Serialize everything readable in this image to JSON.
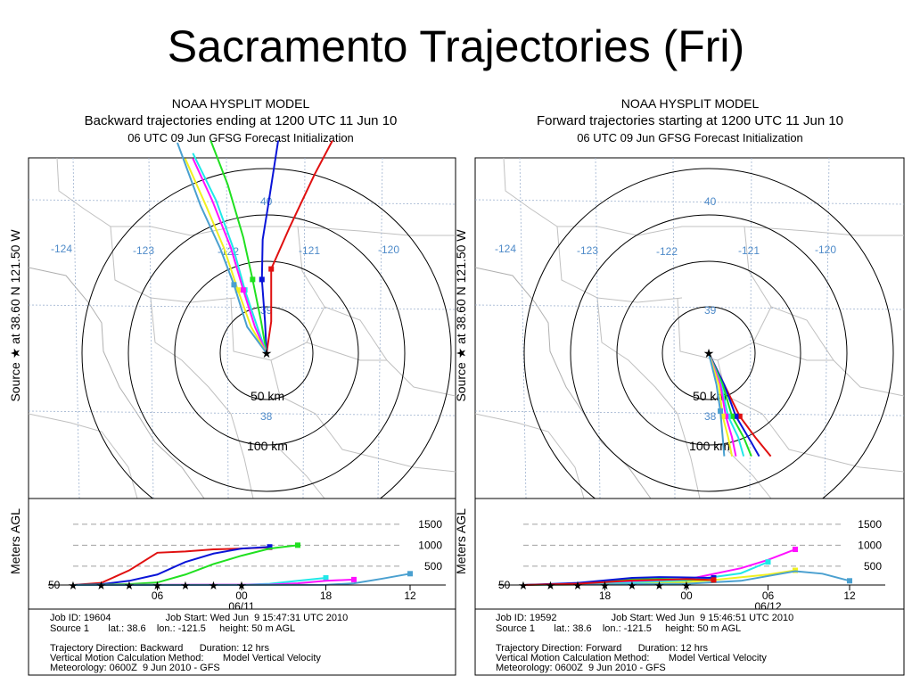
{
  "slide": {
    "title": "Sacramento Trajectories (Fri)"
  },
  "colors": {
    "red": "#e01010",
    "blue": "#0a14d8",
    "green": "#20e020",
    "cyan": "#20e8e8",
    "magenta": "#ff10ff",
    "yellow": "#f0f020",
    "steel": "#4aa0d0"
  },
  "chart_data": [
    {
      "type": "line",
      "header": {
        "line1": "NOAA HYSPLIT MODEL",
        "line2": "Backward trajectories ending at 1200 UTC 11 Jun 10",
        "line3": "06 UTC 09 Jun    GFSG  Forecast Initialization"
      },
      "side_label": "Source  ★  at   38.60 N  121.50 W",
      "map": {
        "lon_labels": [
          "-124",
          "-123",
          "-122",
          "-121",
          "-120"
        ],
        "lat_labels": [
          "40",
          "39",
          "38"
        ],
        "ring_labels": [
          "50 km",
          "100 km"
        ],
        "source": {
          "lat": 38.6,
          "lon": -121.5
        },
        "series": [
          {
            "color": "red",
            "points": [
              [
                -121.5,
                38.6
              ],
              [
                -121.44,
                38.9
              ],
              [
                -121.44,
                39.4
              ],
              [
                -121.2,
                39.8
              ],
              [
                -120.88,
                40.3
              ],
              [
                -120.65,
                40.62
              ]
            ]
          },
          {
            "color": "blue",
            "points": [
              [
                -121.5,
                38.6
              ],
              [
                -121.52,
                38.9
              ],
              [
                -121.56,
                39.3
              ],
              [
                -121.55,
                39.68
              ],
              [
                -121.48,
                40.0
              ],
              [
                -121.35,
                40.62
              ]
            ]
          },
          {
            "color": "green",
            "points": [
              [
                -121.5,
                38.6
              ],
              [
                -121.57,
                38.9
              ],
              [
                -121.68,
                39.3
              ],
              [
                -121.8,
                39.7
              ],
              [
                -122.0,
                40.2
              ],
              [
                -122.22,
                40.62
              ]
            ]
          },
          {
            "color": "cyan",
            "points": [
              [
                -121.5,
                38.6
              ],
              [
                -121.62,
                38.85
              ],
              [
                -121.78,
                39.2
              ],
              [
                -121.93,
                39.6
              ],
              [
                -122.15,
                40.05
              ],
              [
                -122.45,
                40.5
              ]
            ]
          },
          {
            "color": "magenta",
            "points": [
              [
                -121.5,
                38.6
              ],
              [
                -121.65,
                38.85
              ],
              [
                -121.8,
                39.2
              ],
              [
                -121.96,
                39.6
              ],
              [
                -122.2,
                40.05
              ],
              [
                -122.45,
                40.45
              ]
            ]
          },
          {
            "color": "yellow",
            "points": [
              [
                -121.5,
                38.6
              ],
              [
                -121.7,
                38.85
              ],
              [
                -121.87,
                39.2
              ],
              [
                -122.05,
                39.6
              ],
              [
                -122.28,
                40.0
              ],
              [
                -122.55,
                40.45
              ]
            ]
          },
          {
            "color": "steel",
            "points": [
              [
                -121.5,
                38.6
              ],
              [
                -121.75,
                38.85
              ],
              [
                -121.92,
                39.25
              ],
              [
                -122.1,
                39.6
              ],
              [
                -122.35,
                40.0
              ],
              [
                -122.65,
                40.6
              ]
            ]
          }
        ]
      },
      "profile": {
        "ylabel": "Meters AGL",
        "yticks": [
          "1500",
          "1000",
          "500"
        ],
        "ylevels": [
          1500,
          1000,
          500
        ],
        "y_left_label": "50",
        "xticks": [
          "06",
          "00",
          "18",
          "12"
        ],
        "xtick_hours": [
          3,
          6,
          9,
          12
        ],
        "date_label": "06/11",
        "date_hour": 6,
        "series": [
          {
            "color": "red",
            "values": [
              [
                0,
                50
              ],
              [
                1,
                100
              ],
              [
                2,
                400
              ],
              [
                3,
                820
              ],
              [
                4,
                850
              ],
              [
                5,
                900
              ],
              [
                6,
                920
              ],
              [
                7,
                950
              ]
            ]
          },
          {
            "color": "blue",
            "values": [
              [
                0,
                50
              ],
              [
                1,
                70
              ],
              [
                2,
                150
              ],
              [
                3,
                300
              ],
              [
                4,
                600
              ],
              [
                5,
                800
              ],
              [
                6,
                920
              ],
              [
                7,
                960
              ]
            ]
          },
          {
            "color": "green",
            "values": [
              [
                0,
                50
              ],
              [
                2,
                70
              ],
              [
                3,
                110
              ],
              [
                4,
                300
              ],
              [
                5,
                550
              ],
              [
                6,
                750
              ],
              [
                7,
                920
              ],
              [
                8,
                1000
              ]
            ]
          },
          {
            "color": "cyan",
            "values": [
              [
                0,
                50
              ],
              [
                6,
                55
              ],
              [
                7,
                80
              ],
              [
                8,
                150
              ],
              [
                9,
                220
              ]
            ]
          },
          {
            "color": "magenta",
            "values": [
              [
                0,
                50
              ],
              [
                7,
                60
              ],
              [
                8,
                90
              ],
              [
                9,
                150
              ],
              [
                10,
                180
              ]
            ]
          },
          {
            "color": "steel",
            "values": [
              [
                0,
                50
              ],
              [
                9,
                55
              ],
              [
                10,
                90
              ],
              [
                11,
                200
              ],
              [
                12,
                320
              ]
            ]
          }
        ]
      },
      "footer": {
        "line1": "Job ID: 19604                    Job Start: Wed Jun  9 15:47:31 UTC 2010",
        "line2": "Source 1       lat.: 38.6    lon.: -121.5     height: 50 m AGL",
        "line3": "Trajectory Direction: Backward      Duration: 12 hrs",
        "line4": "Vertical Motion Calculation Method:       Model Vertical Velocity",
        "line5": "Meteorology: 0600Z  9 Jun 2010 - GFS"
      }
    },
    {
      "type": "line",
      "header": {
        "line1": "NOAA HYSPLIT MODEL",
        "line2": "Forward trajectories starting at 1200 UTC 11 Jun 10",
        "line3": "06 UTC 09 Jun    GFSG  Forecast Initialization"
      },
      "side_label": "Source  ★  at   38.60 N  121.50 W",
      "map": {
        "lon_labels": [
          "-124",
          "-123",
          "-122",
          "-121",
          "-120"
        ],
        "lat_labels": [
          "40",
          "39",
          "38"
        ],
        "ring_labels": [
          "50 km",
          "100 km"
        ],
        "source": {
          "lat": 38.6,
          "lon": -121.5
        },
        "series": [
          {
            "color": "red",
            "points": [
              [
                -121.5,
                38.6
              ],
              [
                -121.3,
                38.3
              ],
              [
                -121.1,
                38.0
              ],
              [
                -120.9,
                37.8
              ],
              [
                -120.7,
                37.62
              ]
            ]
          },
          {
            "color": "blue",
            "points": [
              [
                -121.5,
                38.6
              ],
              [
                -121.3,
                38.3
              ],
              [
                -121.15,
                38.0
              ],
              [
                -120.95,
                37.75
              ],
              [
                -120.85,
                37.62
              ]
            ]
          },
          {
            "color": "green",
            "points": [
              [
                -121.5,
                38.6
              ],
              [
                -121.32,
                38.3
              ],
              [
                -121.2,
                38.0
              ],
              [
                -121.05,
                37.8
              ],
              [
                -120.95,
                37.62
              ]
            ]
          },
          {
            "color": "cyan",
            "points": [
              [
                -121.5,
                38.6
              ],
              [
                -121.34,
                38.3
              ],
              [
                -121.25,
                38.0
              ],
              [
                -121.12,
                37.8
              ],
              [
                -121.05,
                37.62
              ]
            ]
          },
          {
            "color": "magenta",
            "points": [
              [
                -121.5,
                38.6
              ],
              [
                -121.35,
                38.3
              ],
              [
                -121.28,
                38.0
              ],
              [
                -121.2,
                37.8
              ],
              [
                -121.15,
                37.62
              ]
            ]
          },
          {
            "color": "yellow",
            "points": [
              [
                -121.5,
                38.6
              ],
              [
                -121.37,
                38.3
              ],
              [
                -121.32,
                38.0
              ],
              [
                -121.25,
                37.8
              ],
              [
                -121.2,
                37.62
              ]
            ]
          },
          {
            "color": "steel",
            "points": [
              [
                -121.5,
                38.6
              ],
              [
                -121.4,
                38.3
              ],
              [
                -121.35,
                38.05
              ],
              [
                -121.32,
                37.8
              ],
              [
                -121.3,
                37.62
              ]
            ]
          }
        ]
      },
      "profile": {
        "ylabel": "Meters AGL",
        "yticks": [
          "1500",
          "1000",
          "500"
        ],
        "ylevels": [
          1500,
          1000,
          500
        ],
        "y_left_label": "50",
        "xticks": [
          "18",
          "00",
          "06",
          "12"
        ],
        "xtick_hours": [
          3,
          6,
          9,
          12
        ],
        "date_label": "06/12",
        "date_hour": 9,
        "series": [
          {
            "color": "magenta",
            "values": [
              [
                0,
                50
              ],
              [
                3,
                100
              ],
              [
                6,
                180
              ],
              [
                8,
                450
              ],
              [
                9,
                650
              ],
              [
                10,
                900
              ]
            ]
          },
          {
            "color": "cyan",
            "values": [
              [
                0,
                50
              ],
              [
                3,
                80
              ],
              [
                6,
                150
              ],
              [
                8,
                330
              ],
              [
                9,
                600
              ]
            ]
          },
          {
            "color": "yellow",
            "values": [
              [
                0,
                50
              ],
              [
                4,
                70
              ],
              [
                6,
                120
              ],
              [
                7,
                170
              ],
              [
                9,
                300
              ],
              [
                10,
                400
              ]
            ]
          },
          {
            "color": "steel",
            "values": [
              [
                0,
                50
              ],
              [
                6,
                80
              ],
              [
                8,
                150
              ],
              [
                10,
                380
              ],
              [
                11,
                320
              ],
              [
                12,
                150
              ]
            ]
          },
          {
            "color": "green",
            "values": [
              [
                0,
                50
              ],
              [
                2,
                80
              ],
              [
                4,
                180
              ],
              [
                5,
                200
              ],
              [
                6,
                180
              ],
              [
                7,
                170
              ]
            ]
          },
          {
            "color": "blue",
            "values": [
              [
                0,
                50
              ],
              [
                2,
                100
              ],
              [
                4,
                220
              ],
              [
                5,
                240
              ],
              [
                6,
                230
              ],
              [
                7,
                220
              ]
            ]
          },
          {
            "color": "red",
            "values": [
              [
                0,
                50
              ],
              [
                2,
                80
              ],
              [
                4,
                160
              ],
              [
                6,
                190
              ],
              [
                7,
                170
              ]
            ]
          }
        ]
      },
      "footer": {
        "line1": "Job ID: 19592                    Job Start: Wed Jun  9 15:46:51 UTC 2010",
        "line2": "Source 1       lat.: 38.6    lon.: -121.5     height: 50 m AGL",
        "line3": "Trajectory Direction: Forward      Duration: 12 hrs",
        "line4": "Vertical Motion Calculation Method:       Model Vertical Velocity",
        "line5": "Meteorology: 0600Z  9 Jun 2010 - GFS"
      }
    }
  ]
}
